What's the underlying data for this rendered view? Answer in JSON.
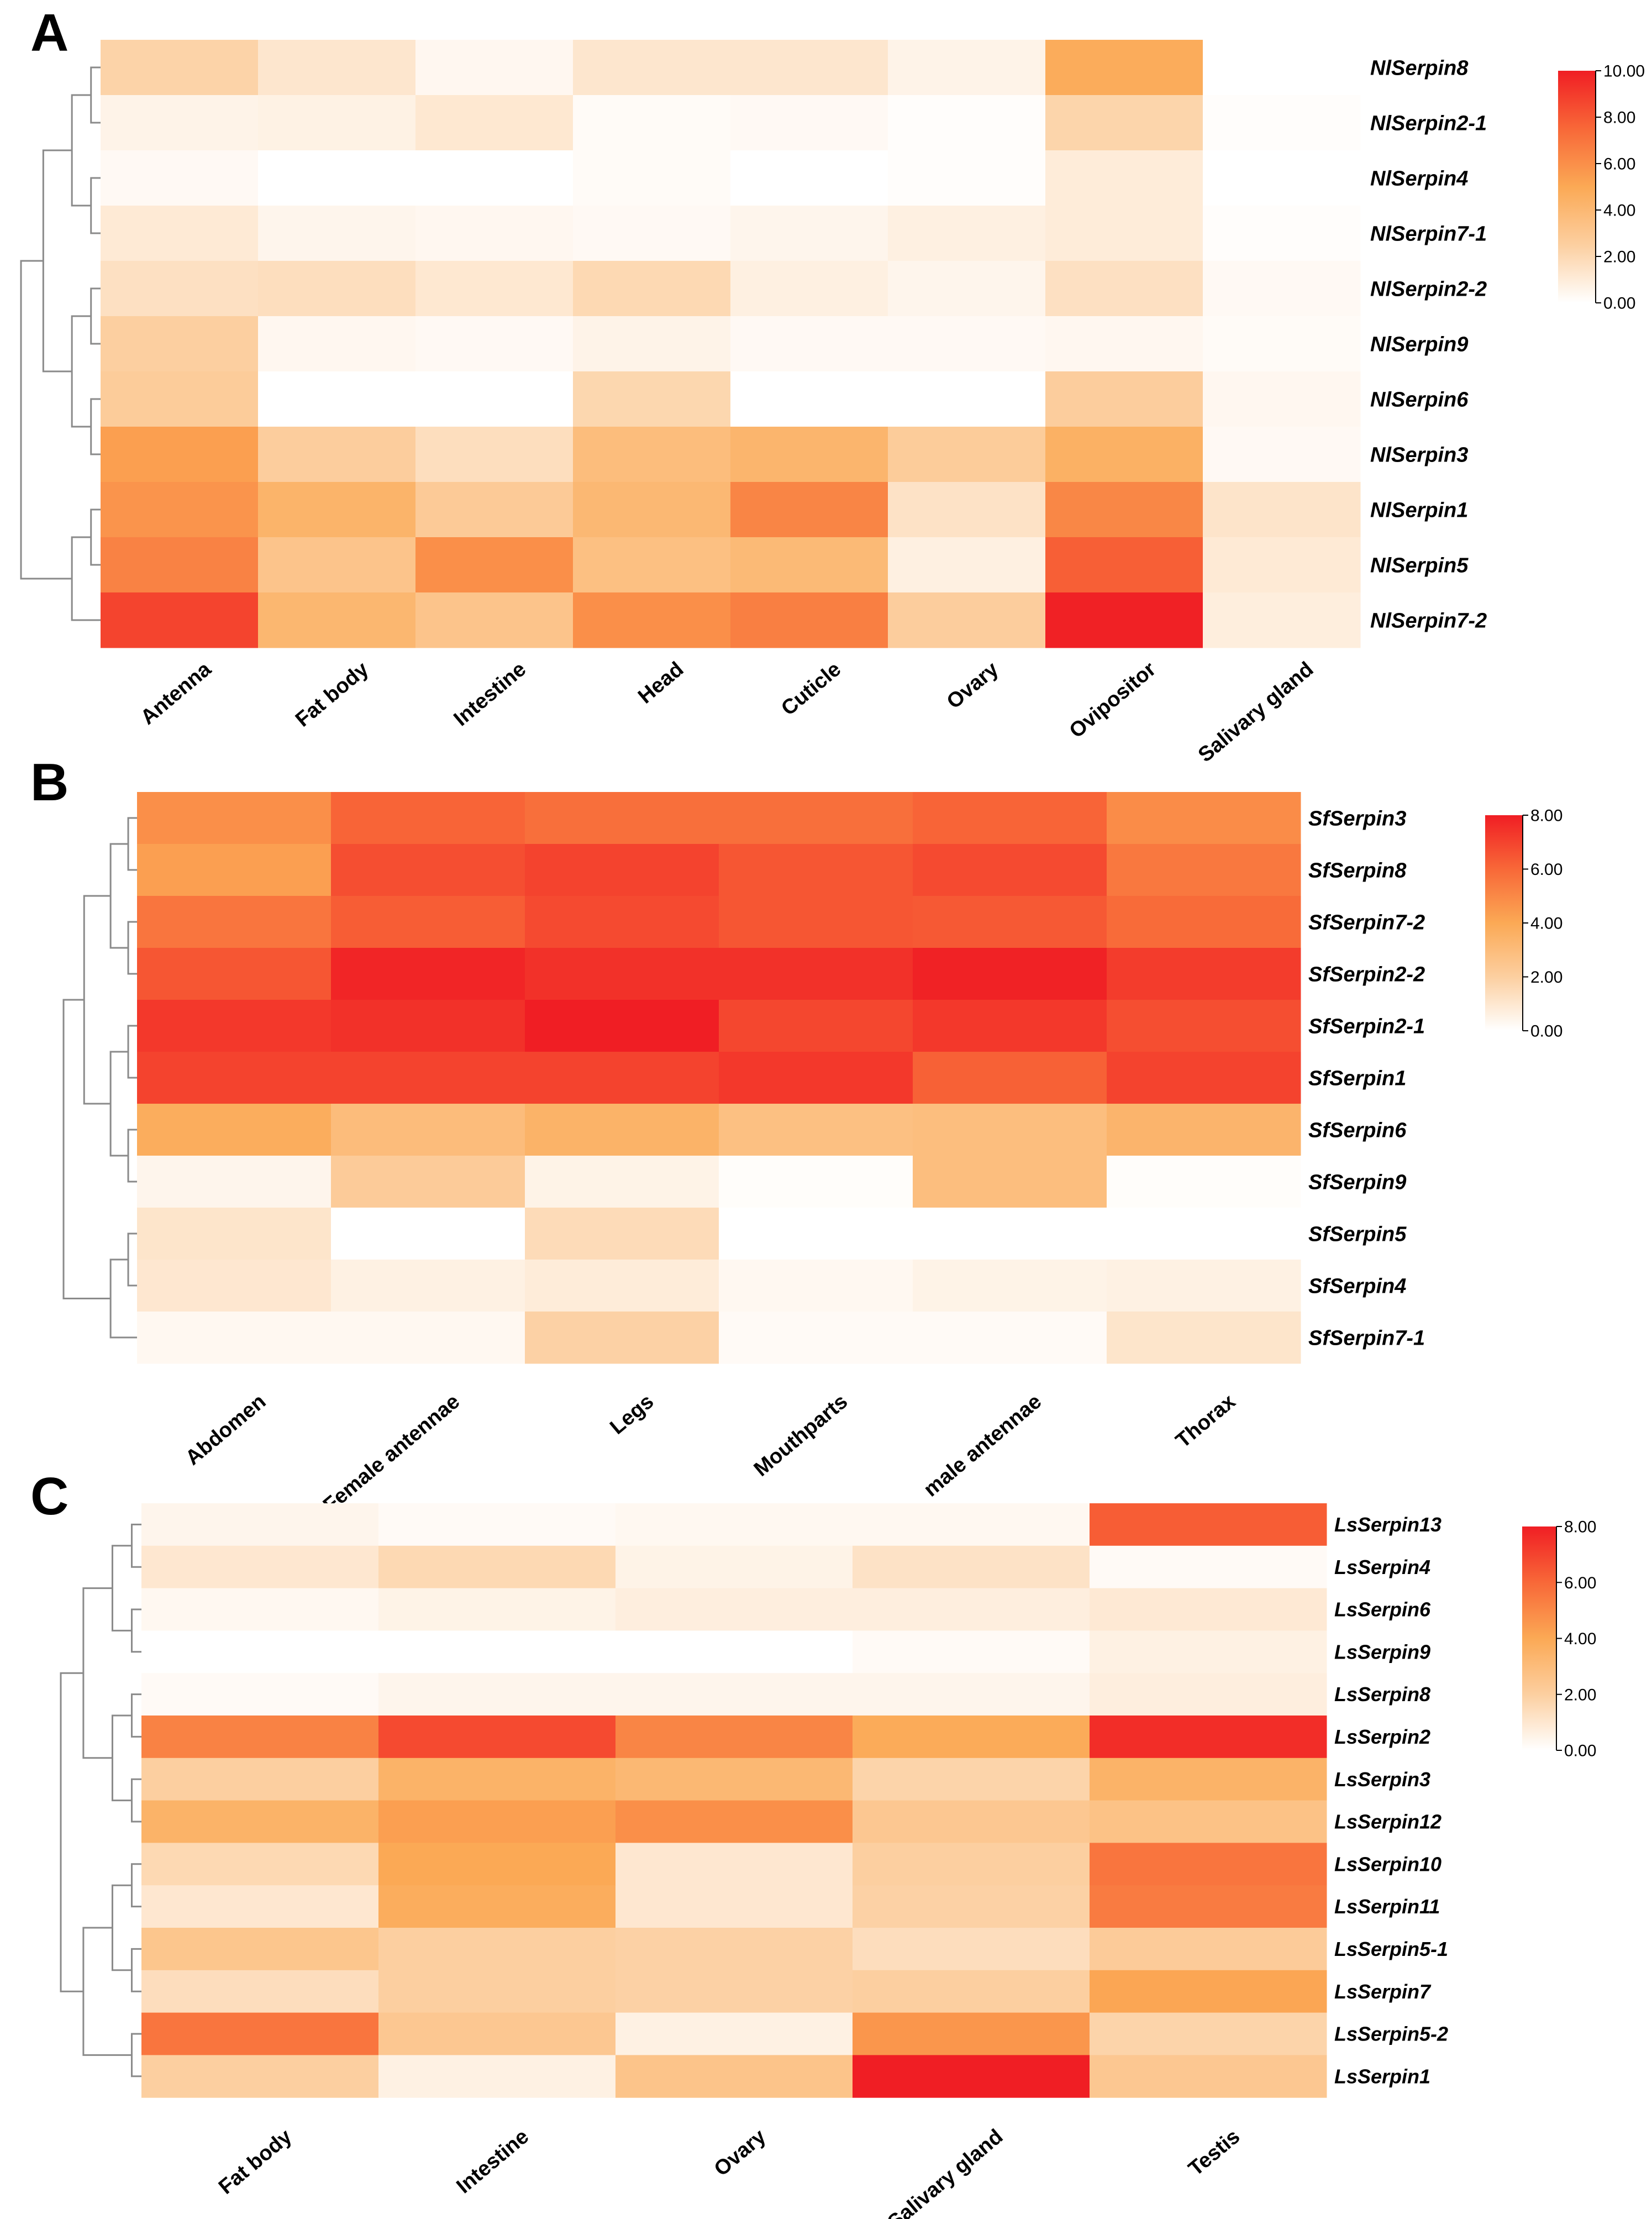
{
  "figure": {
    "panels": [
      "A",
      "B",
      "C"
    ]
  },
  "chart_data": [
    {
      "type": "heatmap",
      "panel": "A",
      "columns": [
        "Antenna",
        "Fat body",
        "Intestine",
        "Head",
        "Cuticle",
        "Ovary",
        "Ovipositor",
        "Salivary gland"
      ],
      "rows": [
        "NlSerpin8",
        "NlSerpin2-1",
        "NlSerpin4",
        "NlSerpin7-1",
        "NlSerpin2-2",
        "NlSerpin9",
        "NlSerpin6",
        "NlSerpin3",
        "NlSerpin1",
        "NlSerpin5",
        "NlSerpin7-2"
      ],
      "values": [
        [
          2.3,
          1.3,
          0.4,
          1.3,
          1.3,
          0.6,
          4.8,
          null
        ],
        [
          0.6,
          0.7,
          1.2,
          0.2,
          0.3,
          0.1,
          2.2,
          0.1
        ],
        [
          0.3,
          0.0,
          0.0,
          0.2,
          0.0,
          0.1,
          1.0,
          0.0
        ],
        [
          1.1,
          0.5,
          0.4,
          0.3,
          0.5,
          0.8,
          1.0,
          0.1
        ],
        [
          1.6,
          1.7,
          1.2,
          2.0,
          0.8,
          0.5,
          1.6,
          0.3
        ],
        [
          2.5,
          0.4,
          0.3,
          0.6,
          0.3,
          0.3,
          0.4,
          0.2
        ],
        [
          2.7,
          0.0,
          0.0,
          2.1,
          0.0,
          0.0,
          2.6,
          0.4
        ],
        [
          5.4,
          2.6,
          1.7,
          3.7,
          4.2,
          2.7,
          4.5,
          0.3
        ],
        [
          5.8,
          4.3,
          2.8,
          4.0,
          6.4,
          1.5,
          6.3,
          1.4
        ],
        [
          6.5,
          3.2,
          6.0,
          3.5,
          3.9,
          0.8,
          7.8,
          1.1
        ],
        [
          8.7,
          4.1,
          3.2,
          6.0,
          6.6,
          2.6,
          9.9,
          0.9
        ]
      ],
      "colorbar": {
        "min": 0,
        "max": 10,
        "ticks": [
          "0.00",
          "2.00",
          "4.00",
          "6.00",
          "8.00",
          "10.00"
        ]
      }
    },
    {
      "type": "heatmap",
      "panel": "B",
      "columns": [
        "Abdomen",
        "Female antennae",
        "Legs",
        "Mouthparts",
        "male antennae",
        "Thorax"
      ],
      "rows": [
        "SfSerpin3",
        "SfSerpin8",
        "SfSerpin7-2",
        "SfSerpin2-2",
        "SfSerpin2-1",
        "SfSerpin1",
        "SfSerpin6",
        "SfSerpin9",
        "SfSerpin5",
        "SfSerpin4",
        "SfSerpin7-1"
      ],
      "values": [
        [
          4.8,
          6.1,
          5.8,
          5.8,
          6.1,
          4.9
        ],
        [
          4.3,
          6.7,
          7.0,
          6.5,
          6.8,
          5.5
        ],
        [
          5.6,
          6.3,
          6.8,
          6.5,
          6.4,
          5.9
        ],
        [
          6.5,
          7.8,
          7.5,
          7.5,
          7.9,
          7.2
        ],
        [
          7.3,
          7.5,
          8.0,
          6.9,
          7.3,
          6.7
        ],
        [
          7.0,
          7.0,
          7.0,
          7.3,
          6.2,
          7.0
        ],
        [
          3.8,
          3.0,
          3.5,
          2.8,
          2.9,
          3.4
        ],
        [
          0.4,
          2.2,
          0.5,
          0.1,
          2.9,
          0.1
        ],
        [
          1.1,
          0.0,
          1.5,
          0.0,
          0.0,
          0.0
        ],
        [
          1.0,
          0.6,
          0.8,
          0.3,
          0.5,
          0.6
        ],
        [
          0.3,
          0.3,
          1.9,
          0.2,
          0.2,
          1.1
        ]
      ],
      "colorbar": {
        "min": 0,
        "max": 8,
        "ticks": [
          "0.00",
          "2.00",
          "4.00",
          "6.00",
          "8.00"
        ]
      }
    },
    {
      "type": "heatmap",
      "panel": "C",
      "columns": [
        "Fat body",
        "Intestine",
        "Ovary",
        "Salivary gland",
        "Testis"
      ],
      "rows": [
        "LsSerpin13",
        "LsSerpin4",
        "LsSerpin6",
        "LsSerpin9",
        "LsSerpin8",
        "LsSerpin2",
        "LsSerpin3",
        "LsSerpin12",
        "LsSerpin10",
        "LsSerpin11",
        "LsSerpin5-1",
        "LsSerpin7",
        "LsSerpin5-2",
        "LsSerpin1"
      ],
      "values": [
        [
          0.4,
          0.2,
          0.3,
          0.3,
          6.3
        ],
        [
          1.0,
          1.6,
          0.5,
          1.2,
          0.2
        ],
        [
          0.3,
          0.5,
          0.7,
          0.7,
          0.9
        ],
        [
          0.0,
          0.0,
          0.0,
          0.2,
          0.6
        ],
        [
          0.2,
          0.4,
          0.4,
          0.4,
          0.7
        ],
        [
          5.2,
          6.8,
          5.1,
          3.9,
          7.6
        ],
        [
          2.0,
          3.5,
          3.2,
          1.8,
          3.5
        ],
        [
          3.5,
          4.3,
          4.8,
          2.4,
          2.7
        ],
        [
          1.6,
          4.0,
          1.0,
          2.0,
          5.6
        ],
        [
          1.0,
          3.8,
          1.0,
          1.9,
          5.4
        ],
        [
          2.5,
          2.0,
          1.9,
          1.4,
          2.2
        ],
        [
          1.4,
          2.0,
          1.9,
          2.0,
          4.1
        ],
        [
          5.6,
          2.4,
          0.6,
          4.6,
          1.8
        ],
        [
          2.0,
          0.6,
          2.6,
          8.0,
          2.4
        ]
      ],
      "colorbar": {
        "min": 0,
        "max": 8,
        "ticks": [
          "0.00",
          "2.00",
          "4.00",
          "6.00",
          "8.00"
        ]
      }
    }
  ]
}
